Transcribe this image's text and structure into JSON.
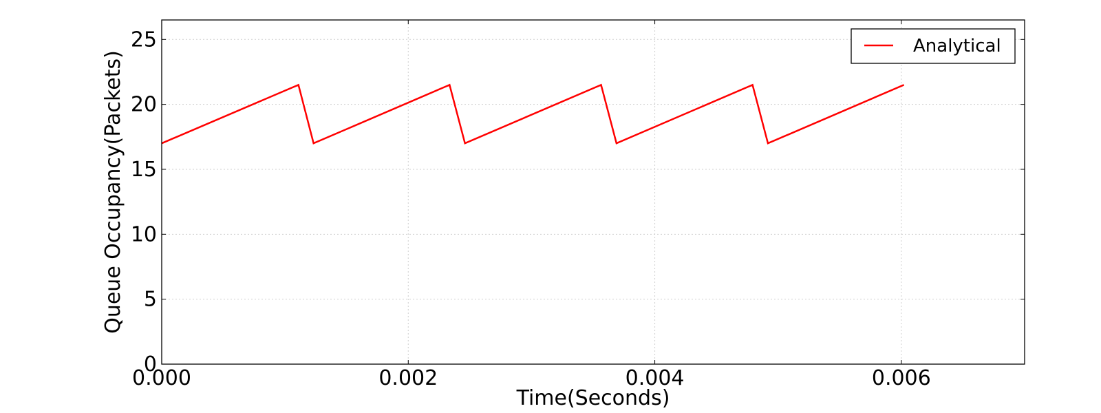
{
  "chart_data": {
    "type": "line",
    "title": "",
    "xlabel": "Time(Seconds)",
    "ylabel": "Queue Occupancy(Packets)",
    "xlim": [
      0,
      0.007
    ],
    "ylim": [
      0,
      26.5
    ],
    "xticks": [
      0,
      0.002,
      0.004,
      0.006
    ],
    "xtick_labels": [
      "0.000",
      "0.002",
      "0.004",
      "0.006"
    ],
    "yticks": [
      0,
      5,
      10,
      15,
      20,
      25
    ],
    "ytick_labels": [
      "0",
      "5",
      "10",
      "15",
      "20",
      "25"
    ],
    "grid": true,
    "legend_position": "top-right",
    "series": [
      {
        "name": "Analytical",
        "color": "#ff0000",
        "x": [
          0.0,
          0.001109,
          0.001232,
          0.002335,
          0.00246,
          0.003564,
          0.003689,
          0.004793,
          0.004918,
          0.006021
        ],
        "y": [
          17.0,
          21.5,
          17.0,
          21.5,
          17.0,
          21.5,
          17.0,
          21.5,
          17.0,
          21.5
        ]
      }
    ]
  }
}
